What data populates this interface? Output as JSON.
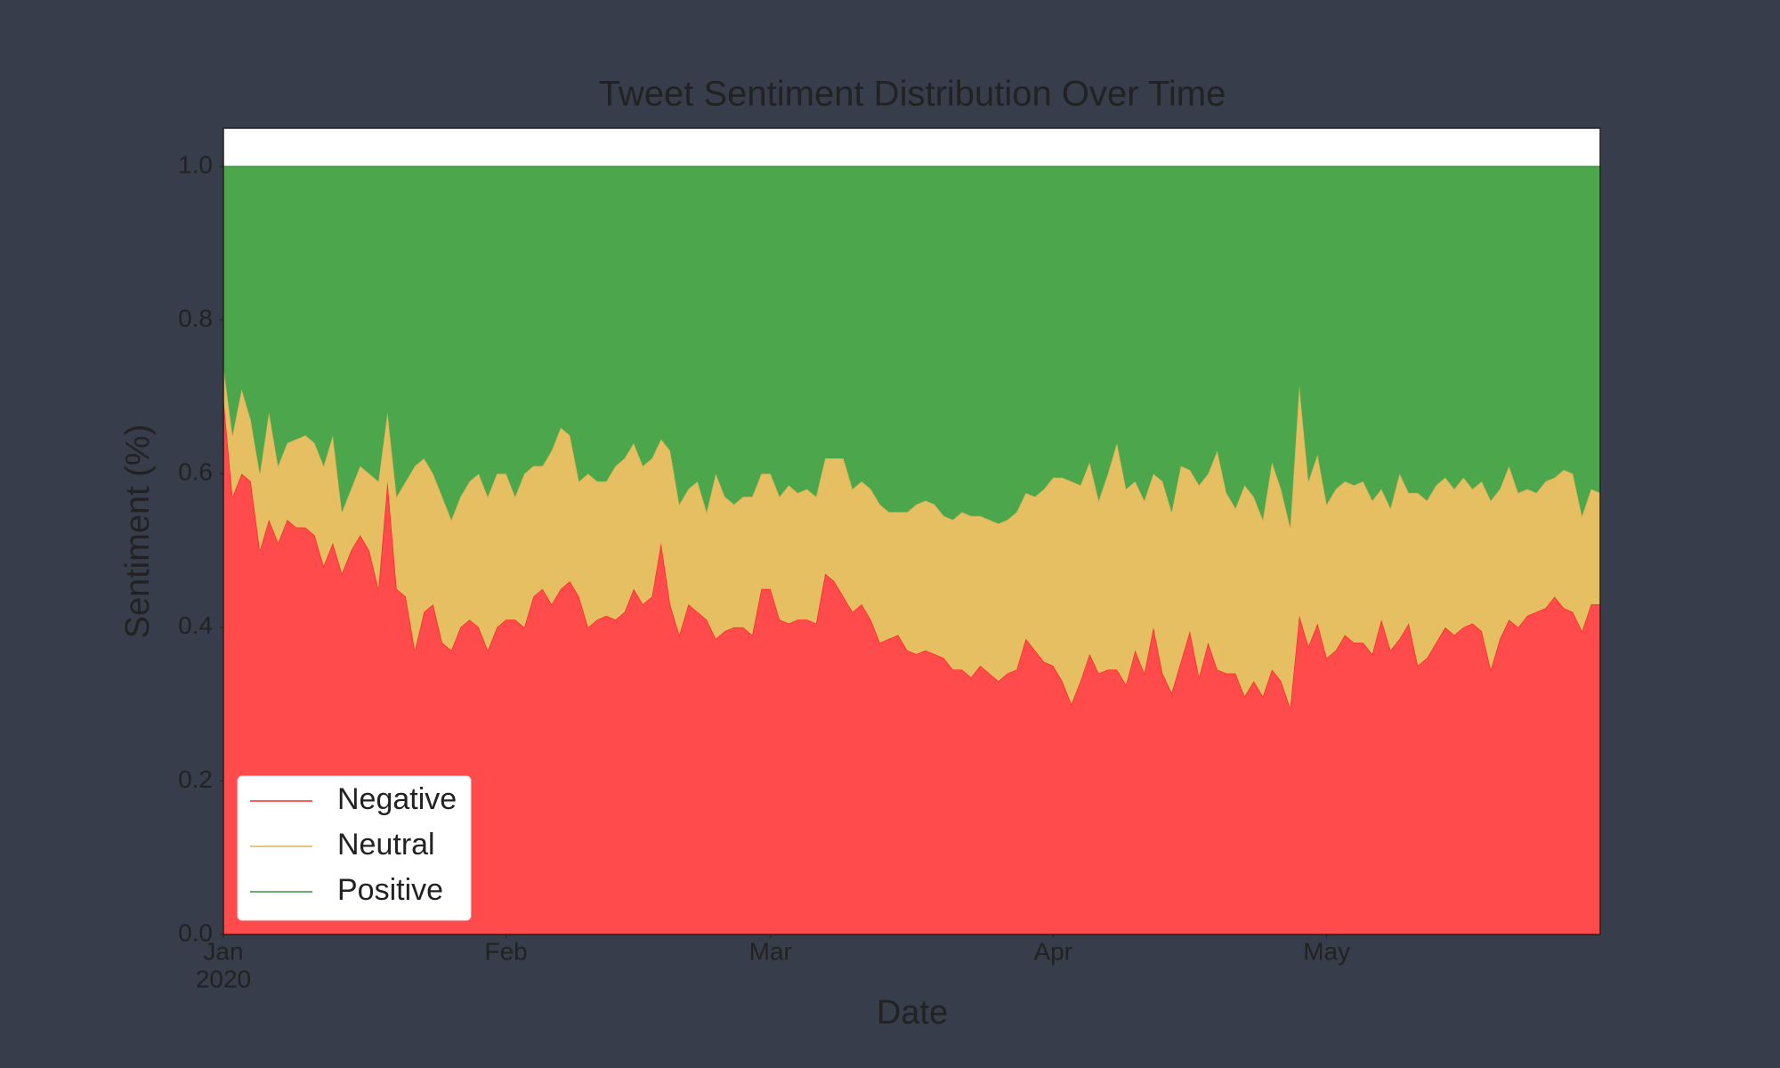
{
  "chart_data": {
    "type": "stacked_area",
    "title": "Tweet Sentiment Distribution Over Time",
    "xlabel": "Date",
    "ylabel": "Sentiment (%)",
    "year_label": "2020",
    "x": [
      0,
      1,
      2,
      3,
      4,
      5,
      6,
      7,
      8,
      9,
      10,
      11,
      12,
      13,
      14,
      15,
      16,
      17,
      18,
      19,
      20,
      21,
      22,
      23,
      24,
      25,
      26,
      27,
      28,
      29,
      30,
      31,
      32,
      33,
      34,
      35,
      36,
      37,
      38,
      39,
      40,
      41,
      42,
      43,
      44,
      45,
      46,
      47,
      48,
      49,
      50,
      51,
      52,
      53,
      54,
      55,
      56,
      57,
      58,
      59,
      60,
      61,
      62,
      63,
      64,
      65,
      66,
      67,
      68,
      69,
      70,
      71,
      72,
      73,
      74,
      75,
      76,
      77,
      78,
      79,
      80,
      81,
      82,
      83,
      84,
      85,
      86,
      87,
      88,
      89,
      90,
      91,
      92,
      93,
      94,
      95,
      96,
      97,
      98,
      99,
      100,
      101,
      102,
      103,
      104,
      105,
      106,
      107,
      108,
      109,
      110,
      111,
      112,
      113,
      114,
      115,
      116,
      117,
      118,
      119,
      120,
      121,
      122,
      123,
      124,
      125,
      126,
      127,
      128,
      129,
      130,
      131,
      132,
      133,
      134,
      135,
      136,
      137,
      138,
      139,
      140,
      141,
      142,
      143,
      144,
      145,
      146,
      147,
      148,
      149,
      150,
      151
    ],
    "xlim": [
      0,
      151
    ],
    "xticks": [
      {
        "value": 0,
        "label": "Jan"
      },
      {
        "value": 31,
        "label": "Feb"
      },
      {
        "value": 60,
        "label": "Mar"
      },
      {
        "value": 91,
        "label": "Apr"
      },
      {
        "value": 121,
        "label": "May"
      }
    ],
    "ylim": [
      0,
      1.05
    ],
    "yticks": [
      {
        "value": 0,
        "label": "0.0"
      },
      0.2,
      0.4,
      0.6,
      0.8,
      {
        "value": 1,
        "label": "1.0"
      }
    ],
    "legend_loc": "lower left",
    "series": [
      {
        "name": "Negative",
        "color": "#ff4b4b",
        "line_color": "#ff2a2a",
        "values": [
          0.7,
          0.57,
          0.6,
          0.59,
          0.5,
          0.54,
          0.51,
          0.54,
          0.53,
          0.53,
          0.52,
          0.48,
          0.51,
          0.47,
          0.5,
          0.52,
          0.5,
          0.45,
          0.59,
          0.45,
          0.44,
          0.37,
          0.42,
          0.43,
          0.38,
          0.37,
          0.4,
          0.41,
          0.4,
          0.37,
          0.4,
          0.41,
          0.41,
          0.4,
          0.44,
          0.45,
          0.43,
          0.45,
          0.46,
          0.44,
          0.4,
          0.41,
          0.415,
          0.41,
          0.42,
          0.45,
          0.43,
          0.44,
          0.51,
          0.43,
          0.39,
          0.43,
          0.42,
          0.41,
          0.385,
          0.395,
          0.4,
          0.4,
          0.39,
          0.45,
          0.45,
          0.41,
          0.405,
          0.41,
          0.41,
          0.405,
          0.47,
          0.46,
          0.44,
          0.42,
          0.43,
          0.41,
          0.38,
          0.385,
          0.39,
          0.37,
          0.365,
          0.37,
          0.365,
          0.36,
          0.345,
          0.345,
          0.335,
          0.35,
          0.34,
          0.33,
          0.34,
          0.345,
          0.385,
          0.37,
          0.355,
          0.35,
          0.33,
          0.3,
          0.33,
          0.365,
          0.34,
          0.345,
          0.345,
          0.325,
          0.37,
          0.34,
          0.4,
          0.34,
          0.315,
          0.355,
          0.395,
          0.335,
          0.38,
          0.345,
          0.34,
          0.34,
          0.31,
          0.33,
          0.31,
          0.345,
          0.33,
          0.295,
          0.415,
          0.375,
          0.405,
          0.36,
          0.37,
          0.39,
          0.38,
          0.38,
          0.365,
          0.41,
          0.37,
          0.385,
          0.405,
          0.35,
          0.36,
          0.38,
          0.4,
          0.39,
          0.4,
          0.405,
          0.395,
          0.345,
          0.385,
          0.41,
          0.4,
          0.415,
          0.42,
          0.425,
          0.44,
          0.425,
          0.42,
          0.395,
          0.43,
          0.43
        ]
      },
      {
        "name": "Neutral",
        "color": "#e5bf62",
        "line_color": "#d9b255",
        "values": [
          0.04,
          0.08,
          0.11,
          0.08,
          0.1,
          0.14,
          0.1,
          0.1,
          0.115,
          0.12,
          0.12,
          0.13,
          0.14,
          0.08,
          0.08,
          0.09,
          0.1,
          0.14,
          0.09,
          0.12,
          0.15,
          0.24,
          0.2,
          0.17,
          0.19,
          0.17,
          0.17,
          0.18,
          0.2,
          0.2,
          0.2,
          0.19,
          0.16,
          0.2,
          0.17,
          0.16,
          0.2,
          0.21,
          0.19,
          0.15,
          0.2,
          0.18,
          0.175,
          0.2,
          0.2,
          0.19,
          0.18,
          0.18,
          0.135,
          0.2,
          0.17,
          0.15,
          0.17,
          0.14,
          0.215,
          0.175,
          0.16,
          0.17,
          0.18,
          0.15,
          0.15,
          0.16,
          0.18,
          0.165,
          0.17,
          0.165,
          0.15,
          0.16,
          0.18,
          0.16,
          0.16,
          0.17,
          0.18,
          0.165,
          0.16,
          0.18,
          0.195,
          0.195,
          0.195,
          0.185,
          0.195,
          0.205,
          0.21,
          0.195,
          0.2,
          0.205,
          0.2,
          0.205,
          0.19,
          0.2,
          0.225,
          0.245,
          0.265,
          0.29,
          0.255,
          0.25,
          0.225,
          0.255,
          0.295,
          0.255,
          0.22,
          0.225,
          0.2,
          0.25,
          0.235,
          0.255,
          0.21,
          0.25,
          0.22,
          0.285,
          0.235,
          0.215,
          0.275,
          0.24,
          0.23,
          0.27,
          0.25,
          0.235,
          0.3,
          0.215,
          0.22,
          0.2,
          0.21,
          0.2,
          0.205,
          0.21,
          0.2,
          0.17,
          0.185,
          0.215,
          0.17,
          0.225,
          0.205,
          0.205,
          0.195,
          0.19,
          0.195,
          0.175,
          0.195,
          0.22,
          0.195,
          0.2,
          0.175,
          0.165,
          0.155,
          0.165,
          0.155,
          0.18,
          0.18,
          0.15,
          0.15,
          0.145
        ]
      },
      {
        "name": "Positive",
        "color": "#4ca64c",
        "line_color": "#3f8f3f",
        "values": [
          0.26,
          0.35,
          0.29,
          0.33,
          0.4,
          0.32,
          0.39,
          0.36,
          0.355,
          0.35,
          0.36,
          0.39,
          0.35,
          0.45,
          0.42,
          0.39,
          0.4,
          0.41,
          0.32,
          0.43,
          0.41,
          0.39,
          0.38,
          0.4,
          0.43,
          0.46,
          0.43,
          0.41,
          0.4,
          0.43,
          0.4,
          0.4,
          0.43,
          0.4,
          0.39,
          0.39,
          0.37,
          0.34,
          0.35,
          0.41,
          0.4,
          0.41,
          0.41,
          0.39,
          0.38,
          0.36,
          0.39,
          0.38,
          0.355,
          0.37,
          0.44,
          0.42,
          0.41,
          0.45,
          0.4,
          0.43,
          0.44,
          0.43,
          0.43,
          0.4,
          0.4,
          0.43,
          0.415,
          0.425,
          0.42,
          0.43,
          0.38,
          0.38,
          0.38,
          0.42,
          0.41,
          0.42,
          0.44,
          0.45,
          0.45,
          0.45,
          0.44,
          0.435,
          0.44,
          0.455,
          0.46,
          0.45,
          0.455,
          0.455,
          0.46,
          0.465,
          0.46,
          0.45,
          0.425,
          0.43,
          0.42,
          0.405,
          0.405,
          0.41,
          0.415,
          0.385,
          0.435,
          0.4,
          0.36,
          0.42,
          0.41,
          0.435,
          0.4,
          0.41,
          0.45,
          0.39,
          0.395,
          0.415,
          0.4,
          0.37,
          0.425,
          0.445,
          0.415,
          0.43,
          0.46,
          0.385,
          0.42,
          0.47,
          0.285,
          0.41,
          0.375,
          0.44,
          0.42,
          0.41,
          0.415,
          0.41,
          0.435,
          0.42,
          0.445,
          0.4,
          0.425,
          0.425,
          0.435,
          0.415,
          0.405,
          0.42,
          0.405,
          0.42,
          0.41,
          0.435,
          0.42,
          0.39,
          0.425,
          0.42,
          0.425,
          0.41,
          0.405,
          0.395,
          0.4,
          0.455,
          0.42,
          0.425
        ]
      }
    ]
  }
}
